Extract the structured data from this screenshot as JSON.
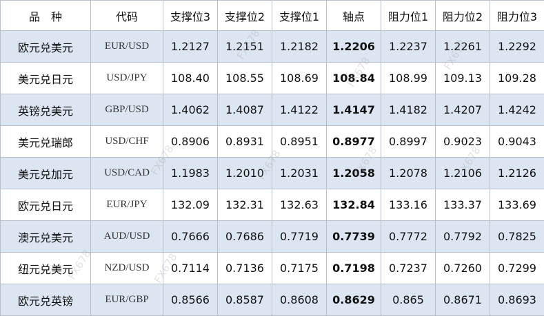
{
  "headers": [
    "品　种",
    "代码",
    "支撑位3",
    "支撑位2",
    "支撑位1",
    "轴点",
    "阻力位1",
    "阻力位2",
    "阻力位3"
  ],
  "rows": [
    {
      "name": "欧元兑美元",
      "code": "EUR/USD",
      "s3": "1.2127",
      "s2": "1.2151",
      "s1": "1.2182",
      "pivot": "1.2206",
      "r1": "1.2237",
      "r2": "1.2261",
      "r3": "1.2292"
    },
    {
      "name": "美元兑日元",
      "code": "USD/JPY",
      "s3": "108.40",
      "s2": "108.55",
      "s1": "108.69",
      "pivot": "108.84",
      "r1": "108.99",
      "r2": "109.13",
      "r3": "109.28"
    },
    {
      "name": "英镑兑美元",
      "code": "GBP/USD",
      "s3": "1.4062",
      "s2": "1.4087",
      "s1": "1.4122",
      "pivot": "1.4147",
      "r1": "1.4182",
      "r2": "1.4207",
      "r3": "1.4242"
    },
    {
      "name": "美元兑瑞郎",
      "code": "USD/CHF",
      "s3": "0.8906",
      "s2": "0.8931",
      "s1": "0.8951",
      "pivot": "0.8977",
      "r1": "0.8997",
      "r2": "0.9023",
      "r3": "0.9043"
    },
    {
      "name": "美元兑加元",
      "code": "USD/CAD",
      "s3": "1.1983",
      "s2": "1.2010",
      "s1": "1.2031",
      "pivot": "1.2058",
      "r1": "1.2078",
      "r2": "1.2106",
      "r3": "1.2126"
    },
    {
      "name": "欧元兑日元",
      "code": "EUR/JPY",
      "s3": "132.09",
      "s2": "132.31",
      "s1": "132.63",
      "pivot": "132.84",
      "r1": "133.16",
      "r2": "133.37",
      "r3": "133.69"
    },
    {
      "name": "澳元兑美元",
      "code": "AUD/USD",
      "s3": "0.7666",
      "s2": "0.7686",
      "s1": "0.7719",
      "pivot": "0.7739",
      "r1": "0.7772",
      "r2": "0.7792",
      "r3": "0.7825"
    },
    {
      "name": "纽元兑美元",
      "code": "NZD/USD",
      "s3": "0.7114",
      "s2": "0.7136",
      "s1": "0.7175",
      "pivot": "0.7198",
      "r1": "0.7237",
      "r2": "0.7260",
      "r3": "0.7299"
    },
    {
      "name": "欧元兑英镑",
      "code": "EUR/GBP",
      "s3": "0.8566",
      "s2": "0.8587",
      "s1": "0.8608",
      "pivot": "0.8629",
      "r1": "0.865",
      "r2": "0.8671",
      "r3": "0.8693"
    }
  ],
  "watermark": "FX678",
  "colors": {
    "shade": "#dce6f3",
    "plain": "#ffffff",
    "border": "#b9bfc8"
  }
}
